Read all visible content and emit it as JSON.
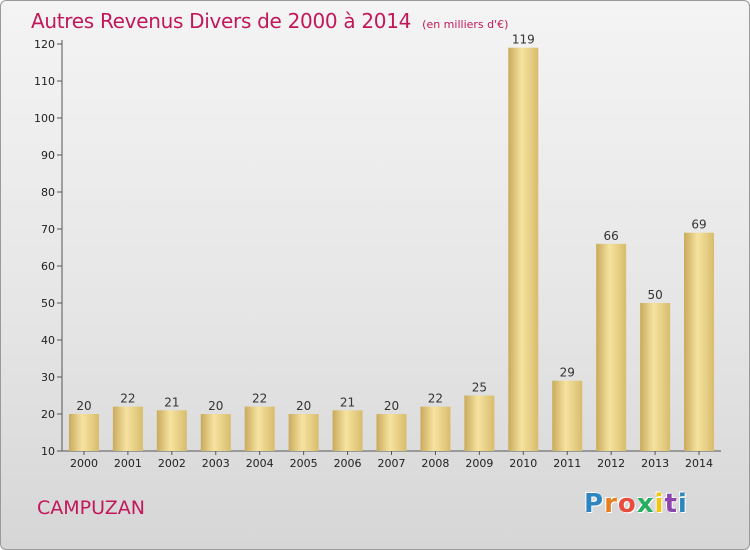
{
  "header": {
    "title": "Autres Revenus Divers de 2000 à 2014",
    "subtitle": "(en milliers d'€)"
  },
  "footer": {
    "commune": "CAMPUZAN",
    "logo_text": "Proxiti",
    "logo_colors": [
      "#2e86c1",
      "#e67e22",
      "#e74c3c",
      "#27ae60",
      "#f1c40f",
      "#8e44ad",
      "#2e86c1"
    ]
  },
  "chart_data": {
    "type": "bar",
    "title": "Autres Revenus Divers de 2000 à 2014",
    "subtitle": "(en milliers d'€)",
    "xlabel": "",
    "ylabel": "",
    "categories": [
      "2000",
      "2001",
      "2002",
      "2003",
      "2004",
      "2005",
      "2006",
      "2007",
      "2008",
      "2009",
      "2010",
      "2011",
      "2012",
      "2013",
      "2014"
    ],
    "values": [
      20,
      22,
      21,
      20,
      22,
      20,
      21,
      20,
      22,
      25,
      119,
      29,
      66,
      50,
      69
    ],
    "ylim": [
      10,
      120
    ],
    "yticks": [
      10,
      20,
      30,
      40,
      50,
      60,
      70,
      80,
      90,
      100,
      110,
      120
    ],
    "grid": false,
    "bar_color": "#e2c77a",
    "bar_color_light": "#f6e3a0"
  }
}
